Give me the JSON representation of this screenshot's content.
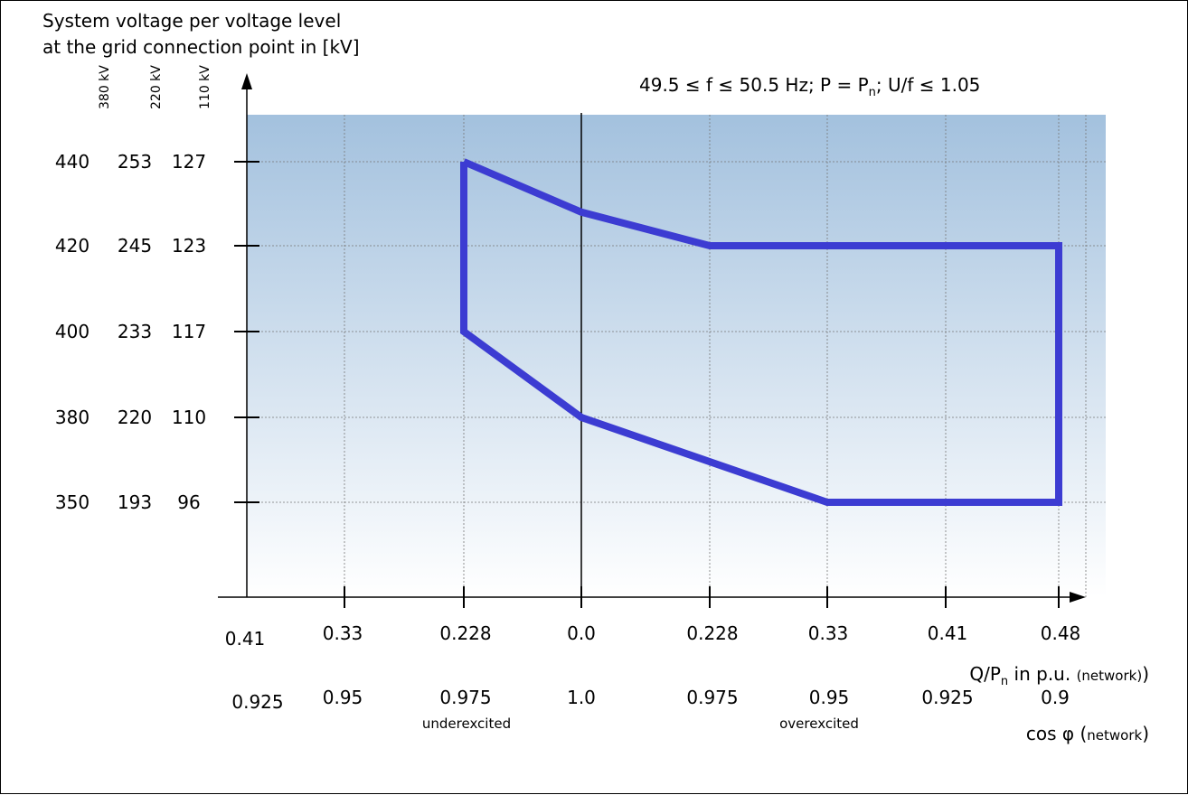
{
  "chart_data": {
    "type": "line",
    "ylabel_line1": "System voltage per voltage level",
    "ylabel_line2": "at the grid connection point in [kV]",
    "condition": {
      "pre": "49.5 ≤ f ≤ 50.5 Hz; P = P",
      "sub": "n",
      "post": "; U/f ≤ 1.05"
    },
    "voltage_levels": [
      "380 kV",
      "220 kV",
      "110 kV"
    ],
    "y_ticks": [
      {
        "v380": "440",
        "v220": "253",
        "v110": "127",
        "value": 127
      },
      {
        "v380": "420",
        "v220": "245",
        "v110": "123",
        "value": 123
      },
      {
        "v380": "400",
        "v220": "233",
        "v110": "117",
        "value": 117
      },
      {
        "v380": "380",
        "v220": "220",
        "v110": "110",
        "value": 110
      },
      {
        "v380": "350",
        "v220": "193",
        "v110": "96",
        "value": 96
      }
    ],
    "x_ticks_q": [
      "0.41",
      "0.33",
      "0.228",
      "0.0",
      "0.228",
      "0.33",
      "0.41",
      "0.48"
    ],
    "x_ticks_q_values": [
      -0.41,
      -0.33,
      -0.228,
      0.0,
      0.228,
      0.33,
      0.41,
      0.48
    ],
    "x_ticks_cos": [
      "0.925",
      "0.95",
      "0.975",
      "1.0",
      "0.975",
      "0.95",
      "0.925",
      "0.9"
    ],
    "xlabel_q": {
      "pre": "Q/P",
      "sub": "n",
      "mid": " in p.u. ",
      "small": "(network)"
    },
    "xlabel_cos": {
      "pre": "cos φ (",
      "small": "network",
      "post": ")"
    },
    "notes": {
      "under": "underexcited",
      "over": "overexcited"
    },
    "series": [
      {
        "points": [
          [
            -0.228,
            127
          ],
          [
            0.0,
            124.6
          ],
          [
            0.228,
            123
          ],
          [
            0.48,
            123
          ],
          [
            0.48,
            96
          ],
          [
            0.33,
            96
          ],
          [
            0.0,
            110
          ],
          [
            -0.228,
            117
          ],
          [
            -0.228,
            127
          ]
        ]
      }
    ],
    "colors": {
      "curve": "#3c3cd2",
      "bg_top": "#a3c1de",
      "bg_bottom": "#ffffff",
      "grid": "#777777"
    },
    "grid": true
  }
}
